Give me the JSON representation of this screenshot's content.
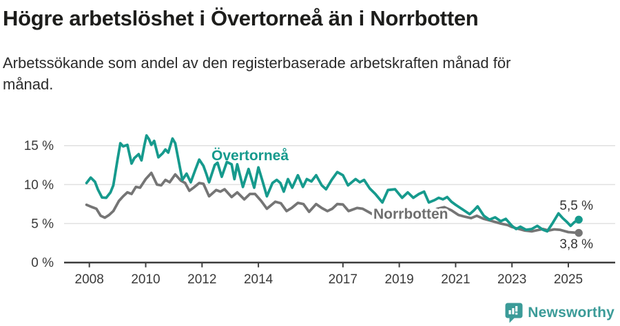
{
  "header": {
    "title": "Högre arbetslöshet i Övertorneå än i Norrbotten",
    "subtitle": "Arbetssökande som andel av den registerbaserade arbetskraften månad för månad."
  },
  "chart_data": {
    "type": "line",
    "title": "Högre arbetslöshet i Övertorneå än i Norrbotten",
    "subtitle": "Arbetssökande som andel av den registerbaserade arbetskraften månad för månad.",
    "x_axis": {
      "range": [
        2007.9,
        2025.9
      ],
      "ticks": [
        2008,
        2010,
        2012,
        2014,
        2017,
        2019,
        2021,
        2023,
        2025
      ],
      "tick_labels": [
        "2008",
        "2010",
        "2012",
        "2014",
        "2017",
        "2019",
        "2021",
        "2023",
        "2025"
      ]
    },
    "y_axis": {
      "range": [
        0,
        17
      ],
      "ticks": [
        0,
        5,
        10,
        15
      ],
      "tick_labels": [
        "0 %",
        "5 %",
        "10 %",
        "15 %"
      ],
      "grid": true,
      "grid_color": "#e0e0e0"
    },
    "legend_position": "inline-labels",
    "axis_color": "#3d3d3d",
    "tick_text_color": "#3a3a3a",
    "end_label_color": "#333333",
    "series": [
      {
        "name": "Norrbotten",
        "color": "#757575",
        "label_color": "#6f6f6f",
        "end_label": "3,8 %",
        "end_value": 3.8,
        "points": [
          [
            2007.9,
            7.4
          ],
          [
            2008.1,
            7.1
          ],
          [
            2008.25,
            6.9
          ],
          [
            2008.4,
            6.0
          ],
          [
            2008.55,
            5.75
          ],
          [
            2008.7,
            6.1
          ],
          [
            2008.85,
            6.6
          ],
          [
            2009.05,
            7.9
          ],
          [
            2009.2,
            8.5
          ],
          [
            2009.35,
            9.0
          ],
          [
            2009.5,
            8.8
          ],
          [
            2009.65,
            9.7
          ],
          [
            2009.8,
            9.6
          ],
          [
            2010.0,
            10.7
          ],
          [
            2010.2,
            11.5
          ],
          [
            2010.4,
            10.0
          ],
          [
            2010.55,
            9.9
          ],
          [
            2010.7,
            10.6
          ],
          [
            2010.85,
            10.3
          ],
          [
            2011.05,
            11.3
          ],
          [
            2011.25,
            10.5
          ],
          [
            2011.4,
            10.2
          ],
          [
            2011.55,
            9.2
          ],
          [
            2011.7,
            9.6
          ],
          [
            2011.9,
            10.2
          ],
          [
            2012.05,
            10.1
          ],
          [
            2012.25,
            8.5
          ],
          [
            2012.5,
            9.3
          ],
          [
            2012.65,
            9.1
          ],
          [
            2012.8,
            9.4
          ],
          [
            2013.05,
            8.4
          ],
          [
            2013.25,
            9.0
          ],
          [
            2013.5,
            8.1
          ],
          [
            2013.7,
            8.8
          ],
          [
            2013.88,
            8.8
          ],
          [
            2014.1,
            7.9
          ],
          [
            2014.3,
            6.9
          ],
          [
            2014.6,
            7.8
          ],
          [
            2014.8,
            7.6
          ],
          [
            2015.0,
            6.6
          ],
          [
            2015.18,
            7.0
          ],
          [
            2015.4,
            7.65
          ],
          [
            2015.6,
            7.5
          ],
          [
            2015.8,
            6.5
          ],
          [
            2016.05,
            7.5
          ],
          [
            2016.25,
            7.0
          ],
          [
            2016.45,
            6.6
          ],
          [
            2016.62,
            6.9
          ],
          [
            2016.8,
            7.5
          ],
          [
            2017.0,
            7.45
          ],
          [
            2017.2,
            6.6
          ],
          [
            2017.5,
            7.0
          ],
          [
            2017.7,
            6.9
          ],
          [
            2017.95,
            6.4
          ],
          [
            2018.2,
            5.9
          ],
          [
            2018.45,
            5.8
          ],
          [
            2018.7,
            6.2
          ],
          [
            2019.0,
            6.4
          ],
          [
            2019.3,
            6.0
          ],
          [
            2019.6,
            6.1
          ],
          [
            2019.9,
            6.4
          ],
          [
            2020.1,
            6.3
          ],
          [
            2020.35,
            6.9
          ],
          [
            2020.6,
            7.1
          ],
          [
            2020.85,
            6.7
          ],
          [
            2021.1,
            6.1
          ],
          [
            2021.3,
            5.9
          ],
          [
            2021.55,
            5.7
          ],
          [
            2021.75,
            6.0
          ],
          [
            2022.0,
            5.6
          ],
          [
            2022.3,
            5.3
          ],
          [
            2022.6,
            5.0
          ],
          [
            2022.85,
            4.8
          ],
          [
            2023.0,
            4.55
          ],
          [
            2023.2,
            4.35
          ],
          [
            2023.45,
            4.1
          ],
          [
            2023.7,
            4.0
          ],
          [
            2023.9,
            4.15
          ],
          [
            2024.1,
            4.3
          ],
          [
            2024.3,
            4.1
          ],
          [
            2024.5,
            4.25
          ],
          [
            2024.7,
            4.2
          ],
          [
            2024.85,
            4.05
          ],
          [
            2025.0,
            3.9
          ],
          [
            2025.2,
            3.85
          ],
          [
            2025.37,
            3.8
          ]
        ]
      },
      {
        "name": "Övertorneå",
        "color": "#169a8d",
        "label_color": "#169a8d",
        "end_label": "5,5 %",
        "end_value": 5.5,
        "points": [
          [
            2007.9,
            10.2
          ],
          [
            2008.05,
            10.9
          ],
          [
            2008.2,
            10.35
          ],
          [
            2008.3,
            9.4
          ],
          [
            2008.45,
            8.35
          ],
          [
            2008.6,
            8.3
          ],
          [
            2008.75,
            9.0
          ],
          [
            2008.85,
            9.9
          ],
          [
            2009.0,
            13.2
          ],
          [
            2009.1,
            15.3
          ],
          [
            2009.2,
            14.9
          ],
          [
            2009.35,
            15.1
          ],
          [
            2009.5,
            12.7
          ],
          [
            2009.6,
            13.4
          ],
          [
            2009.75,
            13.9
          ],
          [
            2009.85,
            13.1
          ],
          [
            2009.95,
            15.0
          ],
          [
            2010.03,
            16.3
          ],
          [
            2010.12,
            15.8
          ],
          [
            2010.2,
            15.1
          ],
          [
            2010.3,
            15.6
          ],
          [
            2010.45,
            13.5
          ],
          [
            2010.6,
            14.0
          ],
          [
            2010.7,
            14.5
          ],
          [
            2010.8,
            14.1
          ],
          [
            2010.95,
            15.9
          ],
          [
            2011.05,
            15.3
          ],
          [
            2011.3,
            10.6
          ],
          [
            2011.45,
            11.4
          ],
          [
            2011.6,
            10.3
          ],
          [
            2011.75,
            11.8
          ],
          [
            2011.9,
            13.2
          ],
          [
            2012.05,
            12.4
          ],
          [
            2012.15,
            11.4
          ],
          [
            2012.25,
            10.3
          ],
          [
            2012.45,
            12.5
          ],
          [
            2012.55,
            12.8
          ],
          [
            2012.7,
            11.0
          ],
          [
            2012.88,
            12.9
          ],
          [
            2013.05,
            12.6
          ],
          [
            2013.15,
            10.7
          ],
          [
            2013.25,
            12.6
          ],
          [
            2013.45,
            9.7
          ],
          [
            2013.65,
            12.0
          ],
          [
            2013.85,
            9.6
          ],
          [
            2014.0,
            12.2
          ],
          [
            2014.15,
            10.4
          ],
          [
            2014.3,
            8.5
          ],
          [
            2014.5,
            10.2
          ],
          [
            2014.65,
            10.6
          ],
          [
            2014.78,
            10.2
          ],
          [
            2014.9,
            9.1
          ],
          [
            2015.05,
            10.7
          ],
          [
            2015.2,
            9.6
          ],
          [
            2015.4,
            11.2
          ],
          [
            2015.58,
            9.7
          ],
          [
            2015.72,
            10.7
          ],
          [
            2015.88,
            10.4
          ],
          [
            2016.05,
            11.2
          ],
          [
            2016.25,
            9.9
          ],
          [
            2016.4,
            9.4
          ],
          [
            2016.6,
            10.6
          ],
          [
            2016.8,
            11.6
          ],
          [
            2017.0,
            11.2
          ],
          [
            2017.18,
            9.9
          ],
          [
            2017.45,
            10.7
          ],
          [
            2017.6,
            10.3
          ],
          [
            2017.75,
            10.6
          ],
          [
            2017.95,
            9.5
          ],
          [
            2018.15,
            8.8
          ],
          [
            2018.4,
            7.7
          ],
          [
            2018.6,
            9.3
          ],
          [
            2018.85,
            9.4
          ],
          [
            2019.1,
            8.3
          ],
          [
            2019.3,
            9.0
          ],
          [
            2019.5,
            8.3
          ],
          [
            2019.7,
            8.8
          ],
          [
            2019.88,
            9.1
          ],
          [
            2020.05,
            7.7
          ],
          [
            2020.25,
            8.0
          ],
          [
            2020.4,
            8.3
          ],
          [
            2020.55,
            8.1
          ],
          [
            2020.7,
            8.4
          ],
          [
            2020.85,
            7.8
          ],
          [
            2021.0,
            7.4
          ],
          [
            2021.25,
            6.8
          ],
          [
            2021.5,
            6.2
          ],
          [
            2021.65,
            6.7
          ],
          [
            2021.78,
            7.2
          ],
          [
            2022.0,
            6.0
          ],
          [
            2022.2,
            5.5
          ],
          [
            2022.4,
            5.8
          ],
          [
            2022.6,
            5.3
          ],
          [
            2022.78,
            5.6
          ],
          [
            2023.0,
            4.7
          ],
          [
            2023.15,
            4.3
          ],
          [
            2023.3,
            4.6
          ],
          [
            2023.5,
            4.2
          ],
          [
            2023.7,
            4.3
          ],
          [
            2023.9,
            4.7
          ],
          [
            2024.1,
            4.2
          ],
          [
            2024.25,
            4.0
          ],
          [
            2024.45,
            5.1
          ],
          [
            2024.65,
            6.3
          ],
          [
            2024.8,
            5.7
          ],
          [
            2024.95,
            5.2
          ],
          [
            2025.08,
            4.7
          ],
          [
            2025.22,
            5.2
          ],
          [
            2025.37,
            5.5
          ]
        ]
      }
    ]
  },
  "footer": {
    "brand": "Newsworthy",
    "brand_color": "#3b9b98"
  }
}
